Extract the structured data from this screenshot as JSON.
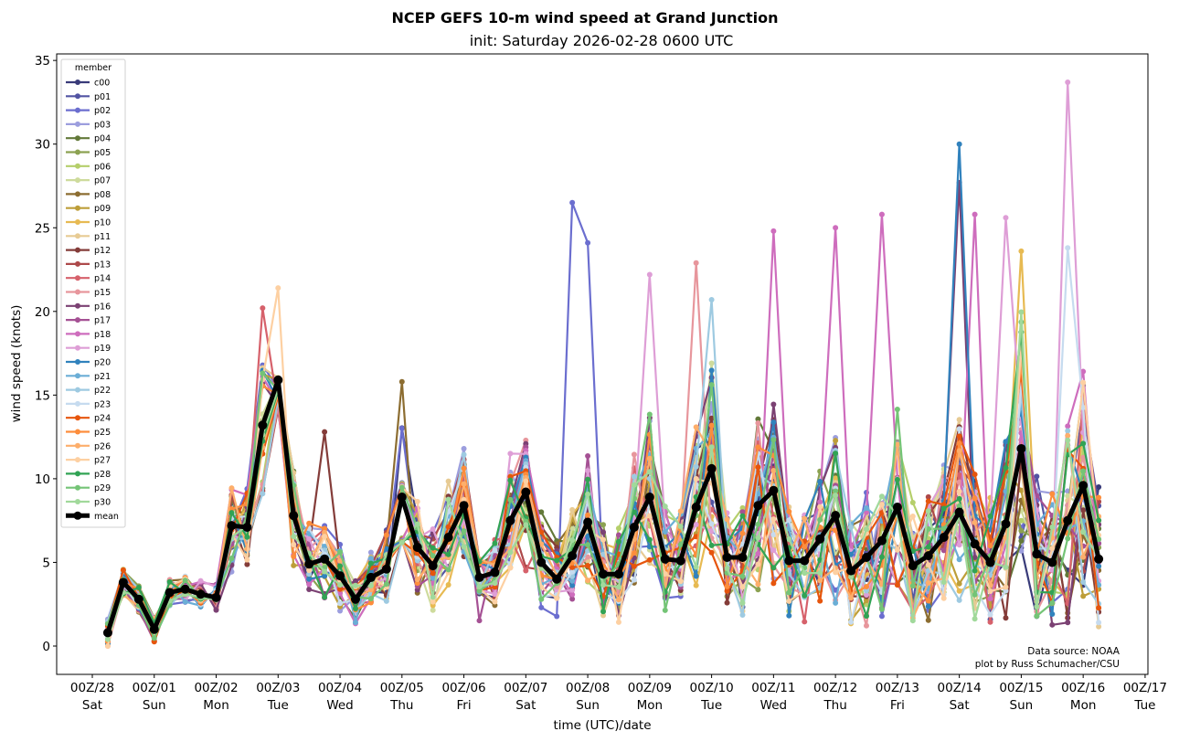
{
  "chart_data": {
    "type": "line",
    "title": "NCEP GEFS 10-m wind speed at Grand Junction",
    "subtitle": "init: Saturday 2026-02-28 0600 UTC",
    "xlabel": "time (UTC)/date",
    "ylabel": "wind speed (knots)",
    "ylim": [
      -1.5,
      35.5
    ],
    "yticks": [
      0,
      5,
      10,
      15,
      20,
      25,
      30,
      35
    ],
    "xlim_days": [
      -0.45,
      17.05
    ],
    "xticks": [
      {
        "day": 0,
        "line1": "00Z/28",
        "line2": "Sat"
      },
      {
        "day": 1,
        "line1": "00Z/01",
        "line2": "Sun"
      },
      {
        "day": 2,
        "line1": "00Z/02",
        "line2": "Mon"
      },
      {
        "day": 3,
        "line1": "00Z/03",
        "line2": "Tue"
      },
      {
        "day": 4,
        "line1": "00Z/04",
        "line2": "Wed"
      },
      {
        "day": 5,
        "line1": "00Z/05",
        "line2": "Thu"
      },
      {
        "day": 6,
        "line1": "00Z/06",
        "line2": "Fri"
      },
      {
        "day": 7,
        "line1": "00Z/07",
        "line2": "Sat"
      },
      {
        "day": 8,
        "line1": "00Z/08",
        "line2": "Sun"
      },
      {
        "day": 9,
        "line1": "00Z/09",
        "line2": "Mon"
      },
      {
        "day": 10,
        "line1": "00Z/10",
        "line2": "Tue"
      },
      {
        "day": 11,
        "line1": "00Z/11",
        "line2": "Wed"
      },
      {
        "day": 12,
        "line1": "00Z/12",
        "line2": "Thu"
      },
      {
        "day": 13,
        "line1": "00Z/13",
        "line2": "Fri"
      },
      {
        "day": 14,
        "line1": "00Z/14",
        "line2": "Sat"
      },
      {
        "day": 15,
        "line1": "00Z/15",
        "line2": "Sun"
      },
      {
        "day": 16,
        "line1": "00Z/16",
        "line2": "Mon"
      },
      {
        "day": 17,
        "line1": "00Z/17",
        "line2": "Tue"
      }
    ],
    "x_start_day": 0.25,
    "x_step_hours": 6,
    "legend": {
      "title": "member",
      "position": "upper-left"
    },
    "grid": false,
    "mean": {
      "name": "mean",
      "color": "#000000",
      "values": [
        0.8,
        3.8,
        2.8,
        1.0,
        3.2,
        3.4,
        3.1,
        2.9,
        7.2,
        7.1,
        13.2,
        15.9,
        7.8,
        4.9,
        5.2,
        4.2,
        2.8,
        4.1,
        4.6,
        8.9,
        5.9,
        4.8,
        6.5,
        8.4,
        4.1,
        4.4,
        7.5,
        9.2,
        5.0,
        4.0,
        5.4,
        7.4,
        4.3,
        4.3,
        7.1,
        8.9,
        5.2,
        5.1,
        8.3,
        10.6,
        5.3,
        5.3,
        8.4,
        9.3,
        5.1,
        5.1,
        6.4,
        7.8,
        4.5,
        5.3,
        6.3,
        8.3,
        4.8,
        5.4,
        6.5,
        8.0,
        6.1,
        5.0,
        7.3,
        11.8,
        5.5,
        5.0,
        7.5,
        9.6,
        5.2
      ]
    },
    "series": [
      {
        "name": "c00",
        "color": "#393b79"
      },
      {
        "name": "p01",
        "color": "#5254a3"
      },
      {
        "name": "p02",
        "color": "#6b6ecf"
      },
      {
        "name": "p03",
        "color": "#9c9ede"
      },
      {
        "name": "p04",
        "color": "#637939"
      },
      {
        "name": "p05",
        "color": "#8ca252"
      },
      {
        "name": "p06",
        "color": "#b5cf6b"
      },
      {
        "name": "p07",
        "color": "#cedb9c"
      },
      {
        "name": "p08",
        "color": "#8c6d31"
      },
      {
        "name": "p09",
        "color": "#bd9e39"
      },
      {
        "name": "p10",
        "color": "#e7ba52"
      },
      {
        "name": "p11",
        "color": "#e7cb94"
      },
      {
        "name": "p12",
        "color": "#843c39"
      },
      {
        "name": "p13",
        "color": "#ad494a"
      },
      {
        "name": "p14",
        "color": "#d6616b"
      },
      {
        "name": "p15",
        "color": "#e7969c"
      },
      {
        "name": "p16",
        "color": "#7b4173"
      },
      {
        "name": "p17",
        "color": "#a55194"
      },
      {
        "name": "p18",
        "color": "#ce6dbd"
      },
      {
        "name": "p19",
        "color": "#de9ed6"
      },
      {
        "name": "p20",
        "color": "#3182bd"
      },
      {
        "name": "p21",
        "color": "#6baed6"
      },
      {
        "name": "p22",
        "color": "#9ecae1"
      },
      {
        "name": "p23",
        "color": "#c6dbef"
      },
      {
        "name": "p24",
        "color": "#e6550d"
      },
      {
        "name": "p25",
        "color": "#fd8d3c"
      },
      {
        "name": "p26",
        "color": "#fdae6b"
      },
      {
        "name": "p27",
        "color": "#fdd0a2"
      },
      {
        "name": "p28",
        "color": "#31a354"
      },
      {
        "name": "p29",
        "color": "#74c476"
      },
      {
        "name": "p30",
        "color": "#a1d99b"
      }
    ],
    "notable_peaks": [
      {
        "member": "p02",
        "time": "18Z/07",
        "value": 26.5
      },
      {
        "member": "p02",
        "time": "00Z/08",
        "value": 24.1
      },
      {
        "member": "p20",
        "time": "00Z/14",
        "value": 30.0
      },
      {
        "member": "p16",
        "time": "00Z/14",
        "value": 27.7
      },
      {
        "member": "p19",
        "time": "18Z/15",
        "value": 33.7
      },
      {
        "member": "p27",
        "time": "00Z/03",
        "value": 21.4
      },
      {
        "member": "p14",
        "time": "18Z/02",
        "value": 20.2
      },
      {
        "member": "p19",
        "time": "00Z/09",
        "value": 22.2
      },
      {
        "member": "p15",
        "time": "18Z/09",
        "value": 22.9
      },
      {
        "member": "p22",
        "time": "00Z/10",
        "value": 20.7
      },
      {
        "member": "p18",
        "time": "00Z/11",
        "value": 24.8
      },
      {
        "member": "p18",
        "time": "00Z/12",
        "value": 25.0
      },
      {
        "member": "p18",
        "time": "18Z/12",
        "value": 25.8
      },
      {
        "member": "p23",
        "time": "18Z/15",
        "value": 23.8
      },
      {
        "member": "p18",
        "time": "06Z/14",
        "value": 25.8
      },
      {
        "member": "p19",
        "time": "18Z/14",
        "value": 25.6
      },
      {
        "member": "p10",
        "time": "00Z/15",
        "value": 23.6
      },
      {
        "member": "p08",
        "time": "00Z/05",
        "value": 15.8
      },
      {
        "member": "p12",
        "time": "18Z/03",
        "value": 12.8
      }
    ]
  },
  "credits": {
    "line1": "Data source: NOAA",
    "line2": "plot by Russ Schumacher/CSU"
  }
}
